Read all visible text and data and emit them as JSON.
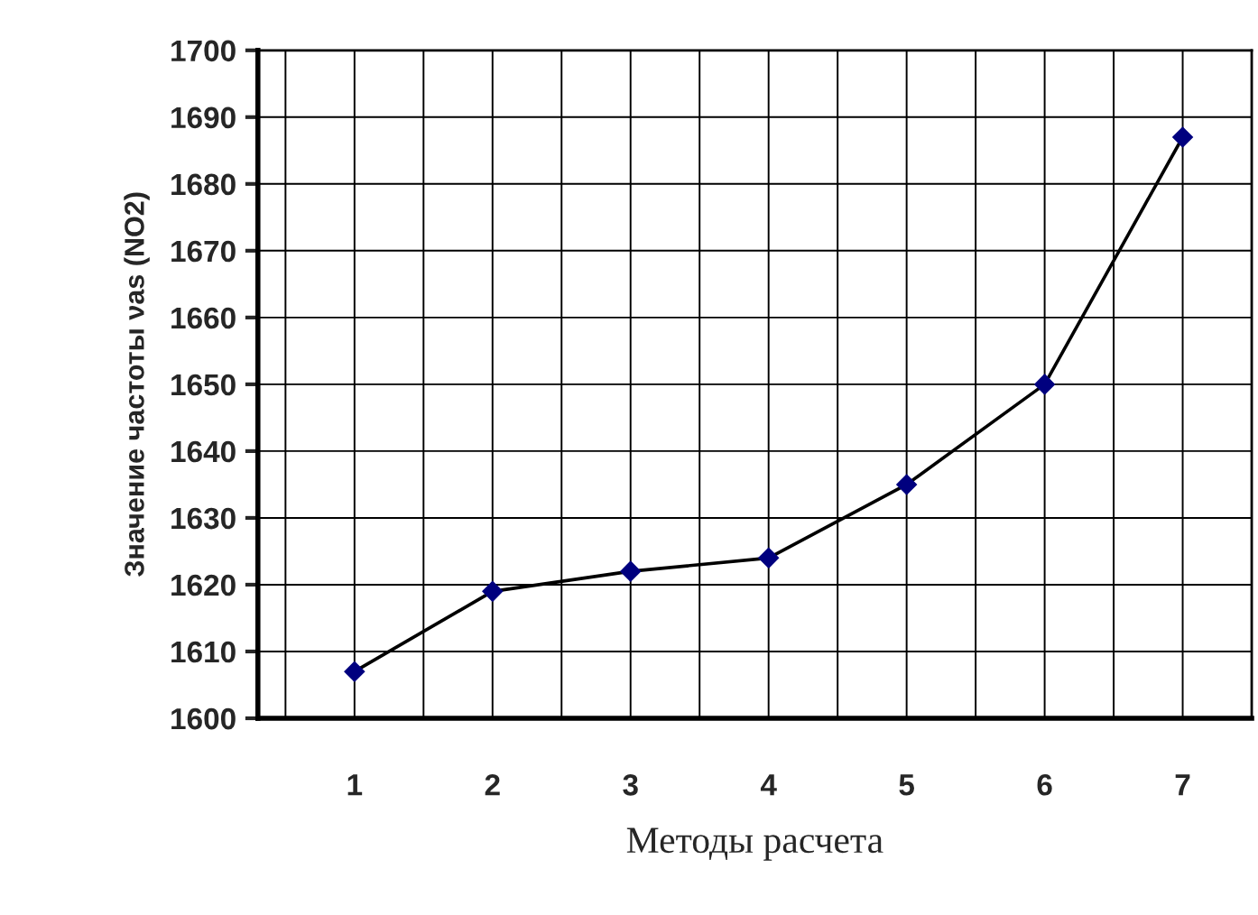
{
  "chart_data": {
    "type": "line",
    "xlabel": "Методы расчета",
    "ylabel": "Значение частоты νas (NO2)",
    "categories": [
      "1",
      "2",
      "3",
      "4",
      "5",
      "6",
      "7"
    ],
    "series": [
      {
        "color": "#000000",
        "values": [
          1607,
          1619,
          1622,
          1624,
          1635,
          1650,
          1687
        ]
      }
    ],
    "ylim": [
      1600,
      1700
    ],
    "yticks": [
      1600,
      1610,
      1620,
      1630,
      1640,
      1650,
      1660,
      1670,
      1680,
      1690,
      1700
    ],
    "grid": true,
    "marker": "diamond",
    "line_style": "solid"
  }
}
